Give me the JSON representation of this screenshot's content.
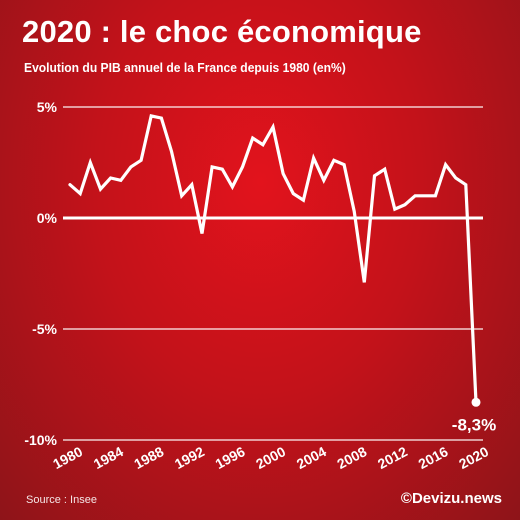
{
  "header": {
    "title": "2020 : le choc économique",
    "subtitle": "Evolution du PIB annuel de la France depuis 1980 (en%)"
  },
  "footer": {
    "source": "Source : Insee",
    "brand": "©Devizu.news"
  },
  "colors": {
    "line": "#ffffff",
    "background_center": "#e2131c",
    "background_edge": "#8e1419"
  },
  "chart_data": {
    "type": "line",
    "title": "2020 : le choc économique",
    "subtitle": "Evolution du PIB annuel de la France depuis 1980 (en%)",
    "xlabel": "",
    "ylabel": "",
    "x": [
      1980,
      1981,
      1982,
      1983,
      1984,
      1985,
      1986,
      1987,
      1988,
      1989,
      1990,
      1991,
      1992,
      1993,
      1994,
      1995,
      1996,
      1997,
      1998,
      1999,
      2000,
      2001,
      2002,
      2003,
      2004,
      2005,
      2006,
      2007,
      2008,
      2009,
      2010,
      2011,
      2012,
      2013,
      2014,
      2015,
      2016,
      2017,
      2018,
      2019,
      2020
    ],
    "series": [
      {
        "values": [
          1.5,
          1.1,
          2.5,
          1.3,
          1.8,
          1.7,
          2.3,
          2.6,
          4.6,
          4.5,
          3.0,
          1.0,
          1.5,
          -0.7,
          2.3,
          2.2,
          1.4,
          2.3,
          3.6,
          3.3,
          4.1,
          2.0,
          1.1,
          0.8,
          2.7,
          1.7,
          2.6,
          2.4,
          0.3,
          -2.9,
          1.9,
          2.2,
          0.4,
          0.6,
          1.0,
          1.0,
          1.0,
          2.4,
          1.8,
          1.5,
          -8.3
        ]
      }
    ],
    "x_ticks": [
      "1980",
      "1984",
      "1988",
      "1992",
      "1996",
      "2000",
      "2004",
      "2008",
      "2012",
      "2016",
      "2020"
    ],
    "y_ticks": [
      5,
      0,
      -5,
      -10
    ],
    "y_tick_labels": [
      "5%",
      "0%",
      "-5%",
      "-10%"
    ],
    "ylim": [
      -10,
      5
    ],
    "xlim": [
      1980,
      2020
    ],
    "grid": "horizontal",
    "annotations": [
      {
        "x": 2020,
        "y": -8.3,
        "text": "-8,3%"
      }
    ]
  }
}
